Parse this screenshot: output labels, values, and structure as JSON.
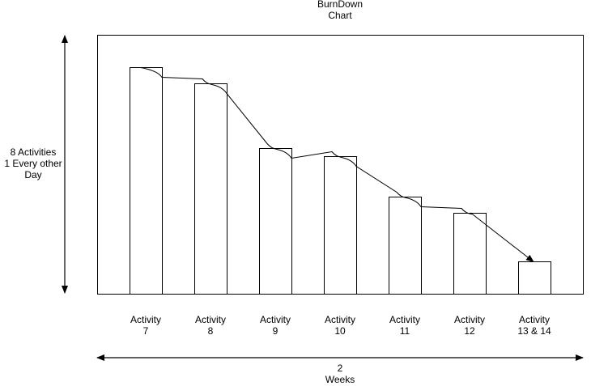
{
  "title": [
    "BurnDown",
    "Chart"
  ],
  "y_axis_label": [
    "8 Activities",
    "1 Every other",
    "Day"
  ],
  "x_axis_label": [
    "2",
    "Weeks"
  ],
  "chart_data": {
    "type": "bar",
    "categories": [
      [
        "Activity",
        "7"
      ],
      [
        "Activity",
        "8"
      ],
      [
        "Activity",
        "9"
      ],
      [
        "Activity",
        "10"
      ],
      [
        "Activity",
        "11"
      ],
      [
        "Activity",
        "12"
      ],
      [
        "Activity",
        "13 & 14"
      ]
    ],
    "values": [
      14,
      13,
      9,
      8.5,
      6,
      5,
      2
    ],
    "ylim": [
      0,
      16
    ],
    "trend_line": true
  }
}
